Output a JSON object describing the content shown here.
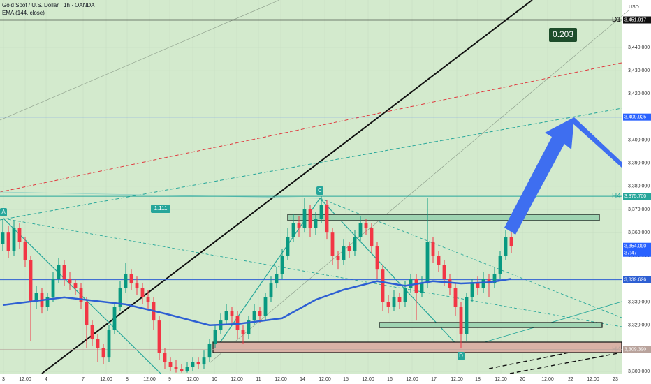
{
  "chart_data": {
    "type": "candlestick",
    "title": "Gold Spot / U.S. Dollar · 1h · OANDA",
    "indicator": "EMA (144, close)",
    "currency": "USD",
    "ylim": [
      3299.09,
      3460.52
    ],
    "yticks": [
      {
        "value": 3440,
        "label": "3,440.000"
      },
      {
        "value": 3430,
        "label": "3,430.000"
      },
      {
        "value": 3420,
        "label": "3,420.000"
      },
      {
        "value": 3410,
        "label": "3,410.000"
      },
      {
        "value": 3400,
        "label": "3,400.000"
      },
      {
        "value": 3390,
        "label": "3,390.000"
      },
      {
        "value": 3380,
        "label": "3,380.000"
      },
      {
        "value": 3370,
        "label": "3,370.000"
      },
      {
        "value": 3360,
        "label": "3,360.000"
      },
      {
        "value": 3350,
        "label": "3,350.000"
      },
      {
        "value": 3340,
        "label": "3,340.000"
      },
      {
        "value": 3330,
        "label": "3,330.000"
      },
      {
        "value": 3320,
        "label": "3,320.000"
      },
      {
        "value": 3310,
        "label": "3,310.000"
      },
      {
        "value": 3300,
        "label": "3,300.000"
      }
    ],
    "xlim": [
      0,
      111.25
    ],
    "xticks": [
      {
        "value": 0.625,
        "label": "3"
      },
      {
        "value": 4.5,
        "label": "12:00"
      },
      {
        "value": 8.25,
        "label": "4"
      },
      {
        "value": 14.875,
        "label": "7"
      },
      {
        "value": 19,
        "label": "12:00"
      },
      {
        "value": 22.75,
        "label": "8"
      },
      {
        "value": 26.75,
        "label": "12:00"
      },
      {
        "value": 30.375,
        "label": "9"
      },
      {
        "value": 34.5,
        "label": "12:00"
      },
      {
        "value": 38.375,
        "label": "10"
      },
      {
        "value": 42.375,
        "label": "12:00"
      },
      {
        "value": 46.25,
        "label": "11"
      },
      {
        "value": 50.25,
        "label": "12:00"
      },
      {
        "value": 54.125,
        "label": "14"
      },
      {
        "value": 58.125,
        "label": "12:00"
      },
      {
        "value": 61.875,
        "label": "15"
      },
      {
        "value": 65.875,
        "label": "12:00"
      },
      {
        "value": 69.75,
        "label": "16"
      },
      {
        "value": 73.75,
        "label": "12:00"
      },
      {
        "value": 77.625,
        "label": "17"
      },
      {
        "value": 81.75,
        "label": "12:00"
      },
      {
        "value": 85.5,
        "label": "18"
      },
      {
        "value": 89.625,
        "label": "12:00"
      },
      {
        "value": 93.5,
        "label": "20"
      },
      {
        "value": 98,
        "label": "12:00"
      },
      {
        "value": 102.125,
        "label": "22"
      },
      {
        "value": 106.125,
        "label": "12:00"
      },
      {
        "value": 110.125,
        "label": "23"
      }
    ],
    "up_color": "#089981",
    "down_color": "#f23645",
    "candles": {
      "open": [
        3355,
        3360,
        3352,
        3362,
        3356,
        3348,
        3330,
        3334,
        3328,
        3332,
        3340,
        3346,
        3340,
        3338,
        3336,
        3330,
        3320,
        3314,
        3310,
        3306,
        3318,
        3328,
        3336,
        3342,
        3338,
        3336,
        3332,
        3330,
        3322,
        3308,
        3304,
        3302,
        3301,
        3300,
        3302,
        3304,
        3303,
        3306,
        3312,
        3318,
        3322,
        3326,
        3324,
        3318,
        3316,
        3322,
        3326,
        3324,
        3332,
        3338,
        3342,
        3350,
        3358,
        3364,
        3362,
        3370,
        3362,
        3366,
        3372,
        3360,
        3350,
        3348,
        3354,
        3352,
        3358,
        3364,
        3362,
        3354,
        3344,
        3330,
        3328,
        3332,
        3330,
        3336,
        3340,
        3334,
        3338,
        3356,
        3350,
        3346,
        3340,
        3336,
        3328,
        3316,
        3332,
        3338,
        3336,
        3340,
        3338,
        3342,
        3350,
        3358
      ],
      "high": [
        3366,
        3363,
        3365,
        3364,
        3358,
        3350,
        3337,
        3336,
        3334,
        3343,
        3349,
        3348,
        3343,
        3340,
        3338,
        3332,
        3322,
        3316,
        3312,
        3320,
        3330,
        3339,
        3347,
        3344,
        3341,
        3338,
        3335,
        3332,
        3324,
        3310,
        3306,
        3305,
        3303,
        3304,
        3306,
        3306,
        3309,
        3314,
        3320,
        3325,
        3329,
        3328,
        3326,
        3320,
        3324,
        3329,
        3328,
        3334,
        3341,
        3345,
        3353,
        3362,
        3368,
        3367,
        3375,
        3372,
        3369,
        3375.7,
        3374,
        3362,
        3352,
        3357,
        3356,
        3361,
        3367,
        3366,
        3364,
        3356,
        3346,
        3333,
        3335,
        3334,
        3339,
        3342,
        3342,
        3341,
        3375,
        3358,
        3352,
        3348,
        3342,
        3338,
        3330,
        3334,
        3340,
        3341,
        3343,
        3342,
        3345,
        3352,
        3361,
        3360
      ],
      "low": [
        3352,
        3349,
        3350,
        3353,
        3345,
        3313,
        3327,
        3325,
        3326,
        3330,
        3338,
        3337,
        3335,
        3333,
        3327,
        3310,
        3311,
        3304,
        3303,
        3304,
        3316,
        3326,
        3334,
        3335,
        3333,
        3329,
        3327,
        3318,
        3305,
        3301,
        3300,
        3299.5,
        3299.5,
        3299.5,
        3300,
        3301,
        3301,
        3304,
        3310,
        3316,
        3320,
        3321,
        3314,
        3312,
        3314,
        3320,
        3321,
        3322,
        3330,
        3336,
        3340,
        3348,
        3356,
        3358,
        3360,
        3358,
        3359,
        3364,
        3357,
        3346,
        3344,
        3346,
        3349,
        3350,
        3356,
        3359,
        3351,
        3340,
        3326,
        3325,
        3326,
        3327,
        3328,
        3334,
        3322,
        3332,
        3336,
        3347,
        3343,
        3337,
        3333,
        3324,
        3310,
        3313,
        3330,
        3333,
        3334,
        3332,
        3336,
        3340,
        3348,
        3351
      ],
      "close": [
        3360,
        3352,
        3362,
        3356,
        3348,
        3330,
        3334,
        3328,
        3332,
        3340,
        3346,
        3340,
        3338,
        3336,
        3330,
        3320,
        3314,
        3310,
        3306,
        3318,
        3328,
        3336,
        3342,
        3338,
        3336,
        3332,
        3330,
        3322,
        3308,
        3304,
        3302,
        3301,
        3300,
        3302,
        3304,
        3303,
        3306,
        3312,
        3318,
        3322,
        3326,
        3324,
        3318,
        3316,
        3322,
        3326,
        3324,
        3332,
        3338,
        3342,
        3350,
        3358,
        3364,
        3362,
        3370,
        3362,
        3366,
        3372,
        3360,
        3350,
        3348,
        3354,
        3352,
        3358,
        3364,
        3362,
        3354,
        3344,
        3330,
        3328,
        3332,
        3330,
        3336,
        3340,
        3334,
        3338,
        3356,
        3350,
        3346,
        3340,
        3336,
        3328,
        3316,
        3332,
        3338,
        3336,
        3340,
        3338,
        3342,
        3350,
        3358,
        3354
      ]
    },
    "ema": {
      "color": "#2d5fd3",
      "x": [
        0,
        11,
        22,
        29,
        37,
        42,
        50,
        56,
        61,
        67,
        72,
        77,
        82,
        87,
        91
      ],
      "values": [
        3328.7,
        3332,
        3329,
        3325,
        3320,
        3320.5,
        3323,
        3331,
        3335.3,
        3339,
        3337,
        3339,
        3338,
        3338.5,
        3340
      ]
    },
    "levels": [
      {
        "value": 3451.917,
        "label": "3,451.917",
        "color": "#111111",
        "tag": "D1"
      },
      {
        "value": 3409.925,
        "label": "3,409.925",
        "color": "#2962ff"
      },
      {
        "value": 3375.7,
        "label": "3,375.700",
        "color": "#26a69a",
        "tag": "H4"
      },
      {
        "value": 3339.626,
        "label": "3,339.626",
        "color": "#2d5fd3"
      },
      {
        "value": 3309.39,
        "label": "3,309.390",
        "color": "#b9a39c",
        "tag": "H4"
      }
    ],
    "last_price": {
      "value": 3354.09,
      "label": "3,354.090",
      "countdown": "37:47",
      "color": "#2962ff"
    },
    "ratio_labels": [
      "0.203",
      "1.111"
    ],
    "points": [
      "A",
      "C",
      "D"
    ]
  }
}
